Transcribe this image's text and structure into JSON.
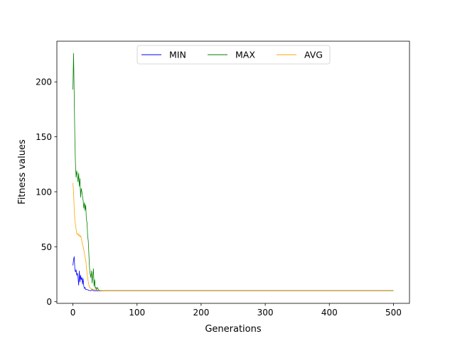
{
  "chart_data": {
    "type": "line",
    "title": "",
    "xlabel": "Generations",
    "ylabel": "Fitness values",
    "xlim": [
      -25,
      525
    ],
    "ylim": [
      -1.5,
      237
    ],
    "xticks": [
      0,
      100,
      200,
      300,
      400,
      500
    ],
    "yticks": [
      0,
      50,
      100,
      150,
      200
    ],
    "grid": false,
    "legend": {
      "placement": "upper center",
      "columns": 3
    },
    "series": [
      {
        "name": "MIN",
        "color": "#0000ff",
        "points": [
          [
            0,
            33
          ],
          [
            1,
            38
          ],
          [
            2,
            41
          ],
          [
            3,
            30
          ],
          [
            4,
            27
          ],
          [
            5,
            29
          ],
          [
            6,
            24
          ],
          [
            7,
            26
          ],
          [
            8,
            22
          ],
          [
            9,
            15
          ],
          [
            10,
            28
          ],
          [
            11,
            18
          ],
          [
            12,
            24
          ],
          [
            13,
            20
          ],
          [
            14,
            22
          ],
          [
            15,
            16
          ],
          [
            16,
            21
          ],
          [
            17,
            14
          ],
          [
            18,
            12
          ],
          [
            19,
            13
          ],
          [
            20,
            11
          ],
          [
            22,
            11
          ],
          [
            24,
            10.5
          ],
          [
            26,
            10.2
          ],
          [
            28,
            10
          ],
          [
            30,
            11
          ],
          [
            32,
            10
          ],
          [
            35,
            10
          ],
          [
            40,
            10
          ],
          [
            500,
            10
          ]
        ]
      },
      {
        "name": "MAX",
        "color": "#008000",
        "points": [
          [
            0,
            193
          ],
          [
            1,
            226
          ],
          [
            2,
            190
          ],
          [
            3,
            150
          ],
          [
            4,
            125
          ],
          [
            5,
            113
          ],
          [
            6,
            119
          ],
          [
            7,
            115
          ],
          [
            8,
            109
          ],
          [
            9,
            117
          ],
          [
            10,
            105
          ],
          [
            11,
            112
          ],
          [
            12,
            95
          ],
          [
            13,
            103
          ],
          [
            14,
            100
          ],
          [
            15,
            96
          ],
          [
            16,
            92
          ],
          [
            17,
            85
          ],
          [
            18,
            90
          ],
          [
            19,
            83
          ],
          [
            20,
            88
          ],
          [
            21,
            75
          ],
          [
            22,
            72
          ],
          [
            23,
            60
          ],
          [
            24,
            55
          ],
          [
            25,
            42
          ],
          [
            26,
            30
          ],
          [
            27,
            25
          ],
          [
            28,
            22
          ],
          [
            29,
            28
          ],
          [
            30,
            17
          ],
          [
            31,
            24
          ],
          [
            32,
            30
          ],
          [
            33,
            14
          ],
          [
            34,
            20
          ],
          [
            35,
            12
          ],
          [
            36,
            13
          ],
          [
            37,
            11
          ],
          [
            38,
            13
          ],
          [
            40,
            11
          ],
          [
            42,
            10
          ],
          [
            45,
            10
          ],
          [
            50,
            10
          ],
          [
            500,
            10
          ]
        ]
      },
      {
        "name": "AVG",
        "color": "#ffa500",
        "points": [
          [
            0,
            108
          ],
          [
            1,
            100
          ],
          [
            2,
            85
          ],
          [
            3,
            75
          ],
          [
            4,
            70
          ],
          [
            5,
            66
          ],
          [
            6,
            62
          ],
          [
            7,
            61
          ],
          [
            8,
            62
          ],
          [
            9,
            60
          ],
          [
            10,
            61
          ],
          [
            11,
            59
          ],
          [
            12,
            60
          ],
          [
            13,
            58
          ],
          [
            14,
            55
          ],
          [
            15,
            52
          ],
          [
            16,
            50
          ],
          [
            17,
            47
          ],
          [
            18,
            44
          ],
          [
            19,
            40
          ],
          [
            20,
            38
          ],
          [
            21,
            32
          ],
          [
            22,
            26
          ],
          [
            23,
            22
          ],
          [
            24,
            18
          ],
          [
            25,
            15
          ],
          [
            26,
            13
          ],
          [
            28,
            12
          ],
          [
            30,
            11.5
          ],
          [
            33,
            11
          ],
          [
            36,
            10.8
          ],
          [
            40,
            10.5
          ],
          [
            45,
            10.2
          ],
          [
            50,
            10
          ],
          [
            500,
            10
          ]
        ]
      }
    ]
  }
}
